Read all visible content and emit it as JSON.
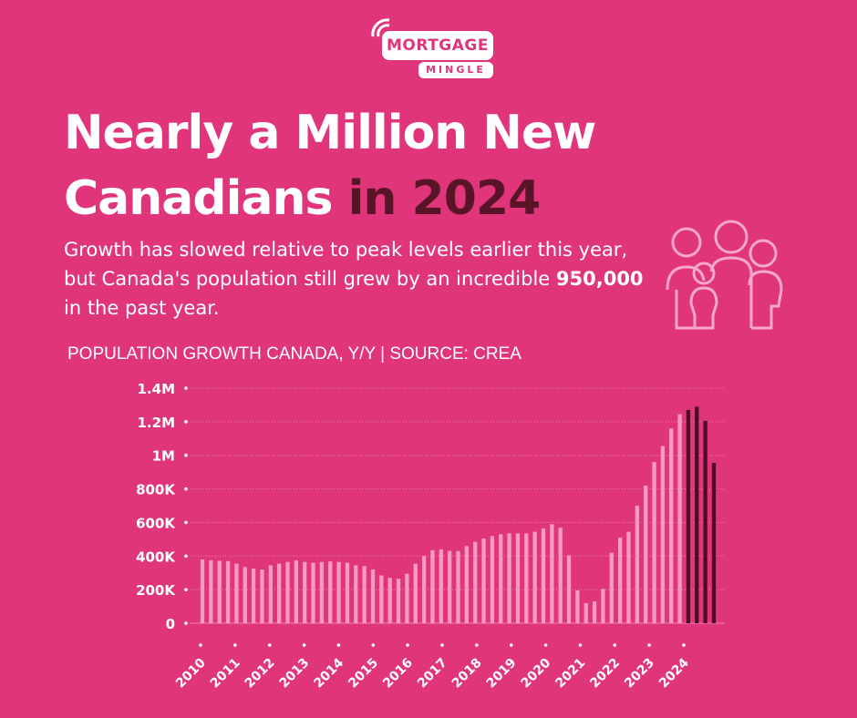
{
  "logo": {
    "line1": "MORTGAGE",
    "line2": "MINGLE"
  },
  "headline": {
    "part1": "Nearly a Million New",
    "part2": "Canadians",
    "part3": "in 2024"
  },
  "subtitle": {
    "pre": "Growth has slowed relative to peak levels earlier this year, but Canada's population still grew by an incredible ",
    "bold": "950,000",
    "post": " in the past year."
  },
  "colors": {
    "background": "#e0357a",
    "bar": "#f79ac2",
    "bar_highlight": "#4a0f22",
    "grid": "#f0a3c4",
    "headline_dark": "#5a1428"
  },
  "chart_data": {
    "type": "bar",
    "title": "POPULATION GROWTH CANADA, Y/Y | SOURCE: CREA",
    "ylim": [
      0,
      1400000
    ],
    "yticks": [
      {
        "v": 0,
        "label": "0"
      },
      {
        "v": 200000,
        "label": "200K"
      },
      {
        "v": 400000,
        "label": "400K"
      },
      {
        "v": 600000,
        "label": "600K"
      },
      {
        "v": 800000,
        "label": "800K"
      },
      {
        "v": 1000000,
        "label": "1M"
      },
      {
        "v": 1200000,
        "label": "1.2M"
      },
      {
        "v": 1400000,
        "label": "1.4M"
      }
    ],
    "xlabels": [
      "2010",
      "2011",
      "2012",
      "2013",
      "2014",
      "2015",
      "2016",
      "2017",
      "2018",
      "2019",
      "2020",
      "2021",
      "2022",
      "2023",
      "2024"
    ],
    "grid": true,
    "highlight_from_index": 59,
    "values": [
      380000,
      375000,
      372000,
      370000,
      355000,
      335000,
      325000,
      320000,
      345000,
      355000,
      365000,
      375000,
      365000,
      360000,
      365000,
      368000,
      365000,
      360000,
      345000,
      340000,
      320000,
      285000,
      270000,
      265000,
      295000,
      355000,
      400000,
      435000,
      440000,
      430000,
      430000,
      460000,
      485000,
      505000,
      520000,
      530000,
      535000,
      535000,
      535000,
      545000,
      565000,
      590000,
      570000,
      405000,
      195000,
      120000,
      130000,
      205000,
      420000,
      510000,
      545000,
      700000,
      820000,
      960000,
      1055000,
      1160000,
      1245000,
      1270000,
      1290000,
      1205000,
      955000
    ]
  }
}
